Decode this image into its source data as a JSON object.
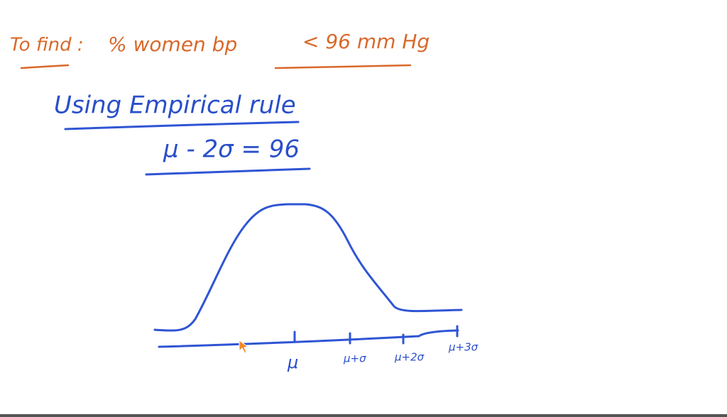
{
  "heading": {
    "label": "To find :",
    "text": "% women   bp",
    "condition": "< 96 mm Hg"
  },
  "method": {
    "title": "Using  Empirical  rule",
    "equation": "μ - 2σ = 96"
  },
  "axis_labels": [
    "μ",
    "μ+σ",
    "μ+2σ",
    "μ+3σ"
  ]
}
